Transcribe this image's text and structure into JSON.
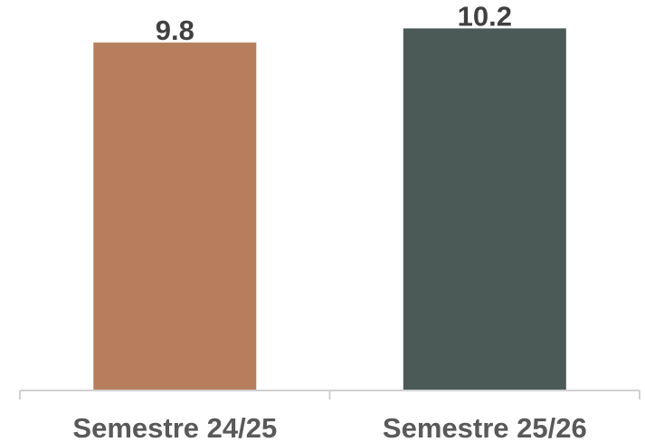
{
  "chart_data": {
    "type": "bar",
    "categories": [
      "Semestre 24/25",
      "Semestre 25/26"
    ],
    "values": [
      9.8,
      10.2
    ],
    "data_labels": [
      "9.8",
      "10.2"
    ],
    "colors": [
      "#b67e5c",
      "#4b5957"
    ],
    "title": "",
    "xlabel": "",
    "ylabel": "",
    "ylim": [
      0,
      11.0
    ],
    "grid": false,
    "legend": "none"
  }
}
